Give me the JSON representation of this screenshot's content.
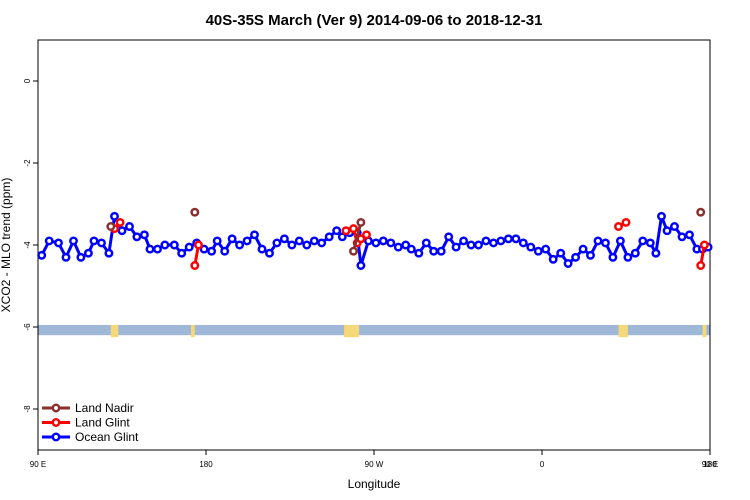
{
  "chart_data": {
    "type": "line",
    "title": "40S-35S March (Ver 9)   2014-09-06 to 2018-12-31",
    "xlabel": "Longitude",
    "ylabel": "XCO2 - MLO trend (ppm)",
    "xlim": [
      90,
      450
    ],
    "ylim": [
      -9,
      1
    ],
    "x_ticks": [
      {
        "value": 90,
        "label": "90 E"
      },
      {
        "value": 180,
        "label": "180"
      },
      {
        "value": 270,
        "label": "90 W"
      },
      {
        "value": 360,
        "label": "0"
      },
      {
        "value": 450,
        "label": "90 E"
      },
      {
        "value": 540,
        "label": "180"
      }
    ],
    "y_ticks": [
      {
        "value": 0,
        "label": "0"
      },
      {
        "value": -2,
        "label": "-2"
      },
      {
        "value": -4,
        "label": "-4"
      },
      {
        "value": -6,
        "label": "-6"
      },
      {
        "value": -8,
        "label": "-8"
      }
    ],
    "legend": {
      "position": "bottom-left",
      "entries": [
        {
          "name": "Land Nadir",
          "color": "#8b2e2e"
        },
        {
          "name": "Land Glint",
          "color": "#ff0000"
        },
        {
          "name": "Ocean Glint",
          "color": "#0000ff"
        }
      ]
    },
    "series": [
      {
        "name": "Land Nadir",
        "color": "#8b2e2e",
        "segments": [
          [
            {
              "x": 129,
              "y": -3.55
            }
          ],
          [
            {
              "x": 174,
              "y": -3.2
            }
          ],
          [
            {
              "x": 259,
              "y": -4.15
            },
            {
              "x": 263,
              "y": -3.45
            }
          ],
          [
            {
              "x": 445,
              "y": -3.2
            }
          ]
        ]
      },
      {
        "name": "Land Glint",
        "color": "#ff0000",
        "segments": [
          [
            {
              "x": 131,
              "y": -3.6
            },
            {
              "x": 134,
              "y": -3.45
            }
          ],
          [
            {
              "x": 174,
              "y": -4.5
            },
            {
              "x": 176,
              "y": -4.0
            }
          ],
          [
            {
              "x": 255,
              "y": -3.65
            },
            {
              "x": 259,
              "y": -3.6
            },
            {
              "x": 261,
              "y": -3.95
            },
            {
              "x": 263,
              "y": -3.85
            },
            {
              "x": 266,
              "y": -3.75
            }
          ],
          [
            {
              "x": 401,
              "y": -3.55
            },
            {
              "x": 405,
              "y": -3.45
            }
          ],
          [
            {
              "x": 445,
              "y": -4.5
            },
            {
              "x": 447,
              "y": -4.0
            }
          ]
        ]
      },
      {
        "name": "Ocean Glint",
        "color": "#0000ff",
        "segments": [
          [
            {
              "x": 92,
              "y": -4.25
            },
            {
              "x": 96,
              "y": -3.9
            },
            {
              "x": 101,
              "y": -3.95
            },
            {
              "x": 105,
              "y": -4.3
            },
            {
              "x": 109,
              "y": -3.9
            },
            {
              "x": 113,
              "y": -4.3
            },
            {
              "x": 117,
              "y": -4.2
            },
            {
              "x": 120,
              "y": -3.9
            },
            {
              "x": 124,
              "y": -3.95
            },
            {
              "x": 128,
              "y": -4.2
            },
            {
              "x": 131,
              "y": -3.3
            },
            {
              "x": 135,
              "y": -3.65
            },
            {
              "x": 139,
              "y": -3.55
            },
            {
              "x": 143,
              "y": -3.8
            },
            {
              "x": 147,
              "y": -3.75
            },
            {
              "x": 150,
              "y": -4.1
            },
            {
              "x": 154,
              "y": -4.1
            },
            {
              "x": 158,
              "y": -4.0
            },
            {
              "x": 163,
              "y": -4.0
            },
            {
              "x": 167,
              "y": -4.2
            },
            {
              "x": 171,
              "y": -4.05
            },
            {
              "x": 175,
              "y": -3.95
            },
            {
              "x": 179,
              "y": -4.1
            },
            {
              "x": 183,
              "y": -4.15
            },
            {
              "x": 186,
              "y": -3.9
            },
            {
              "x": 190,
              "y": -4.15
            },
            {
              "x": 194,
              "y": -3.85
            },
            {
              "x": 198,
              "y": -4.0
            },
            {
              "x": 202,
              "y": -3.9
            },
            {
              "x": 206,
              "y": -3.75
            },
            {
              "x": 210,
              "y": -4.1
            },
            {
              "x": 214,
              "y": -4.2
            },
            {
              "x": 218,
              "y": -3.95
            },
            {
              "x": 222,
              "y": -3.85
            },
            {
              "x": 226,
              "y": -4.0
            },
            {
              "x": 230,
              "y": -3.9
            },
            {
              "x": 234,
              "y": -4.0
            },
            {
              "x": 238,
              "y": -3.9
            },
            {
              "x": 242,
              "y": -3.95
            },
            {
              "x": 246,
              "y": -3.8
            },
            {
              "x": 250,
              "y": -3.65
            },
            {
              "x": 253,
              "y": -3.8
            },
            {
              "x": 257,
              "y": -3.7
            },
            {
              "x": 261,
              "y": -3.7
            },
            {
              "x": 263,
              "y": -4.5
            },
            {
              "x": 267,
              "y": -3.9
            },
            {
              "x": 271,
              "y": -3.95
            },
            {
              "x": 275,
              "y": -3.9
            },
            {
              "x": 279,
              "y": -3.95
            },
            {
              "x": 283,
              "y": -4.05
            },
            {
              "x": 287,
              "y": -4.0
            },
            {
              "x": 290,
              "y": -4.1
            },
            {
              "x": 294,
              "y": -4.2
            },
            {
              "x": 298,
              "y": -3.95
            },
            {
              "x": 302,
              "y": -4.15
            },
            {
              "x": 306,
              "y": -4.15
            },
            {
              "x": 310,
              "y": -3.8
            },
            {
              "x": 314,
              "y": -4.05
            },
            {
              "x": 318,
              "y": -3.9
            },
            {
              "x": 322,
              "y": -4.0
            },
            {
              "x": 326,
              "y": -4.0
            },
            {
              "x": 330,
              "y": -3.9
            },
            {
              "x": 334,
              "y": -3.95
            },
            {
              "x": 338,
              "y": -3.9
            },
            {
              "x": 342,
              "y": -3.85
            },
            {
              "x": 346,
              "y": -3.85
            },
            {
              "x": 350,
              "y": -3.95
            },
            {
              "x": 354,
              "y": -4.05
            },
            {
              "x": 358,
              "y": -4.15
            },
            {
              "x": 362,
              "y": -4.1
            },
            {
              "x": 366,
              "y": -4.35
            },
            {
              "x": 370,
              "y": -4.2
            },
            {
              "x": 374,
              "y": -4.45
            },
            {
              "x": 378,
              "y": -4.3
            },
            {
              "x": 382,
              "y": -4.1
            },
            {
              "x": 386,
              "y": -4.25
            },
            {
              "x": 390,
              "y": -3.9
            },
            {
              "x": 394,
              "y": -3.95
            },
            {
              "x": 398,
              "y": -4.3
            },
            {
              "x": 402,
              "y": -3.9
            },
            {
              "x": 406,
              "y": -4.3
            },
            {
              "x": 410,
              "y": -4.2
            },
            {
              "x": 414,
              "y": -3.9
            },
            {
              "x": 418,
              "y": -3.95
            },
            {
              "x": 421,
              "y": -4.2
            },
            {
              "x": 424,
              "y": -3.3
            },
            {
              "x": 427,
              "y": -3.65
            },
            {
              "x": 431,
              "y": -3.55
            },
            {
              "x": 435,
              "y": -3.8
            },
            {
              "x": 439,
              "y": -3.75
            },
            {
              "x": 443,
              "y": -4.1
            },
            {
              "x": 446,
              "y": -4.1
            },
            {
              "x": 449,
              "y": -4.05
            }
          ]
        ]
      }
    ],
    "band": {
      "y_top": -5.95,
      "y_bottom": -6.2,
      "color": "#a0b8d8"
    },
    "land_patches": [
      {
        "x": [
          129,
          133
        ],
        "color": "#f5d878"
      },
      {
        "x": [
          172,
          174
        ],
        "color": "#f5d878"
      },
      {
        "x": [
          254,
          262
        ],
        "color": "#f5d878"
      },
      {
        "x": [
          401,
          406
        ],
        "color": "#f5d878"
      },
      {
        "x": [
          446,
          448
        ],
        "color": "#f5d878"
      }
    ]
  }
}
